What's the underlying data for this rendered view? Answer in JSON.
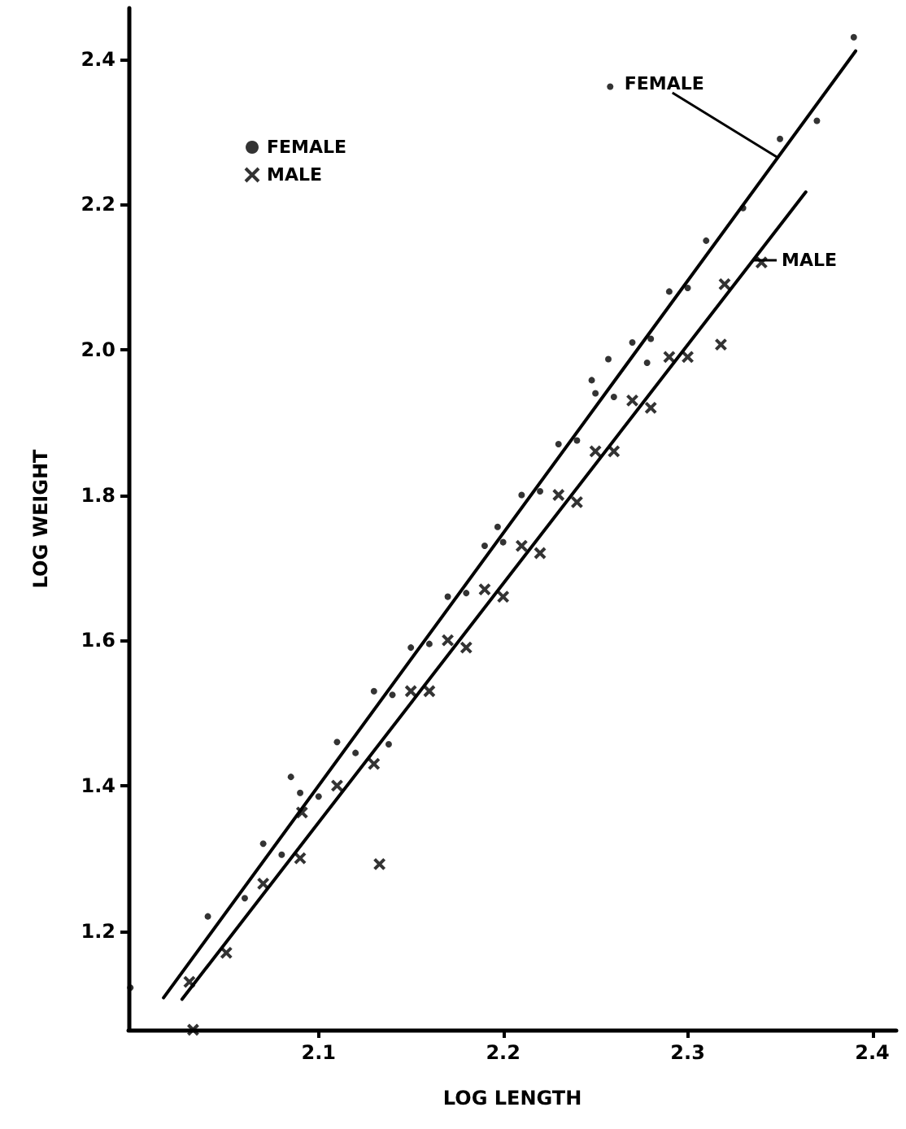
{
  "chart_data": {
    "type": "scatter",
    "xlabel": "LOG LENGTH",
    "ylabel": "LOG WEIGHT",
    "xlim": [
      1.997,
      2.413
    ],
    "ylim": [
      1.064,
      2.47
    ],
    "xticks": [
      2.1,
      2.2,
      2.3,
      2.4
    ],
    "yticks": [
      1.2,
      1.4,
      1.6,
      1.8,
      {
        "value": 2.0,
        "label": "2.0"
      },
      2.2,
      2.4
    ],
    "grid": false,
    "legend": "top left",
    "annotations": [
      {
        "text": "FEMALE",
        "x": 2.349,
        "y": 2.264
      },
      {
        "text": "MALE",
        "x": 2.335,
        "y": 2.123
      }
    ],
    "series": [
      {
        "name": "FEMALE",
        "color": "#000000",
        "marker": "circle",
        "x": [
          2.04,
          2.06,
          2.07,
          2.08,
          2.09,
          2.1,
          2.11,
          2.12,
          2.13,
          2.14,
          2.15,
          2.16,
          2.17,
          2.18,
          2.19,
          2.2,
          2.21,
          2.22,
          2.23,
          2.24,
          2.25,
          2.26,
          2.27,
          2.28,
          2.29,
          2.3,
          2.31,
          2.33,
          2.35,
          2.37,
          2.39,
          1.998,
          2.085,
          2.138,
          2.197,
          2.248,
          2.257,
          2.278,
          2.258
        ],
        "values": [
          1.22,
          1.245,
          1.32,
          1.305,
          1.39,
          1.385,
          1.46,
          1.445,
          1.53,
          1.525,
          1.59,
          1.595,
          1.66,
          1.665,
          1.73,
          1.735,
          1.8,
          1.805,
          1.87,
          1.875,
          1.94,
          1.935,
          2.01,
          2.015,
          2.08,
          2.085,
          2.15,
          2.195,
          2.29,
          2.315,
          2.43,
          1.122,
          1.412,
          1.457,
          1.756,
          1.958,
          1.987,
          1.982,
          2.362
        ]
      },
      {
        "name": "MALE",
        "color": "#000000",
        "marker": "cross",
        "x": [
          2.03,
          2.05,
          2.07,
          2.09,
          2.11,
          2.13,
          2.15,
          2.16,
          2.17,
          2.18,
          2.19,
          2.2,
          2.21,
          2.22,
          2.23,
          2.24,
          2.25,
          2.26,
          2.27,
          2.28,
          2.29,
          2.3,
          2.32,
          2.34,
          2.032,
          2.091,
          2.133,
          2.318
        ],
        "values": [
          1.13,
          1.17,
          1.265,
          1.3,
          1.4,
          1.43,
          1.53,
          1.53,
          1.6,
          1.59,
          1.67,
          1.66,
          1.73,
          1.72,
          1.8,
          1.79,
          1.86,
          1.86,
          1.93,
          1.92,
          1.99,
          1.99,
          2.09,
          2.12,
          1.064,
          1.363,
          1.292,
          2.007
        ]
      },
      {
        "type": "line",
        "color": "#000000",
        "line_style": "solid",
        "x": [
          2.016,
          2.391
        ],
        "values": [
          1.108,
          2.411
        ]
      },
      {
        "type": "line",
        "color": "#000000",
        "line_style": "solid",
        "x": [
          2.026,
          2.364
        ],
        "values": [
          1.106,
          2.217
        ]
      }
    ]
  }
}
